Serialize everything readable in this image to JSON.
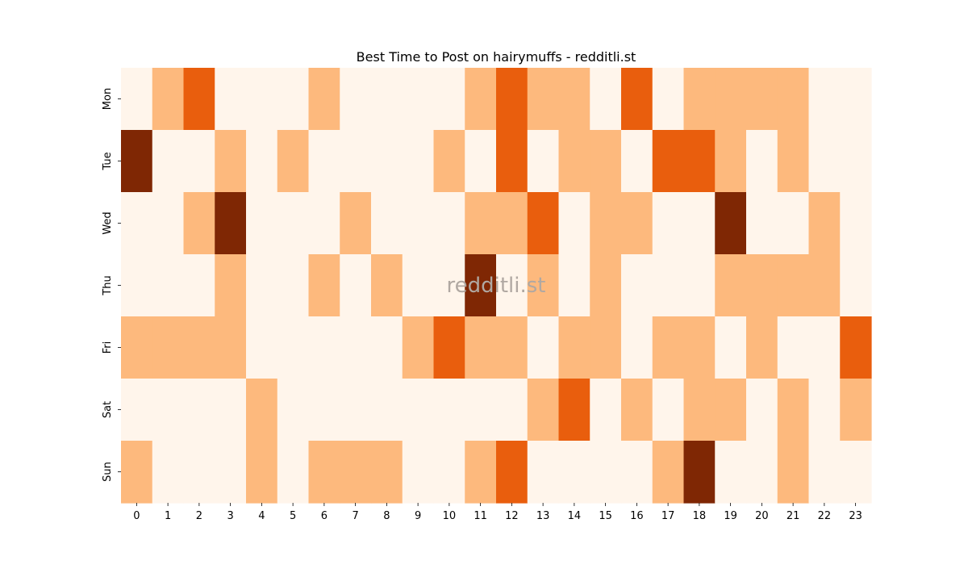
{
  "chart_data": {
    "type": "heatmap",
    "title": "Best Time to Post on hairymuffs - redditli.st",
    "watermark": "redditli.st",
    "x_categories": [
      "0",
      "1",
      "2",
      "3",
      "4",
      "5",
      "6",
      "7",
      "8",
      "9",
      "10",
      "11",
      "12",
      "13",
      "14",
      "15",
      "16",
      "17",
      "18",
      "19",
      "20",
      "21",
      "22",
      "23"
    ],
    "y_categories": [
      "Mon",
      "Tue",
      "Wed",
      "Thu",
      "Fri",
      "Sat",
      "Sun"
    ],
    "xlabel": "",
    "ylabel": "",
    "values": [
      [
        0,
        1,
        2,
        0,
        0,
        0,
        1,
        0,
        0,
        0,
        0,
        1,
        2,
        1,
        1,
        0,
        2,
        0,
        1,
        1,
        1,
        1,
        0,
        0
      ],
      [
        3,
        0,
        0,
        1,
        0,
        1,
        0,
        0,
        0,
        0,
        1,
        0,
        2,
        0,
        1,
        1,
        0,
        2,
        2,
        1,
        0,
        1,
        0,
        0
      ],
      [
        0,
        0,
        1,
        3,
        0,
        0,
        0,
        1,
        0,
        0,
        0,
        1,
        1,
        2,
        0,
        1,
        1,
        0,
        0,
        3,
        0,
        0,
        1,
        0
      ],
      [
        0,
        0,
        0,
        1,
        0,
        0,
        1,
        0,
        1,
        0,
        0,
        3,
        0,
        1,
        0,
        1,
        0,
        0,
        0,
        1,
        1,
        1,
        1,
        0
      ],
      [
        1,
        1,
        1,
        1,
        0,
        0,
        0,
        0,
        0,
        1,
        2,
        1,
        1,
        0,
        1,
        1,
        0,
        1,
        1,
        0,
        1,
        0,
        0,
        2
      ],
      [
        0,
        0,
        0,
        0,
        1,
        0,
        0,
        0,
        0,
        0,
        0,
        0,
        0,
        1,
        2,
        0,
        1,
        0,
        1,
        1,
        0,
        1,
        0,
        1
      ],
      [
        1,
        0,
        0,
        0,
        1,
        0,
        1,
        1,
        1,
        0,
        0,
        1,
        2,
        0,
        0,
        0,
        0,
        1,
        3,
        0,
        0,
        1,
        0,
        0
      ]
    ],
    "color_scale": [
      "#fff5eb",
      "#fdb97d",
      "#e95e0d",
      "#7f2704"
    ],
    "colorbar": false,
    "grid": false
  }
}
